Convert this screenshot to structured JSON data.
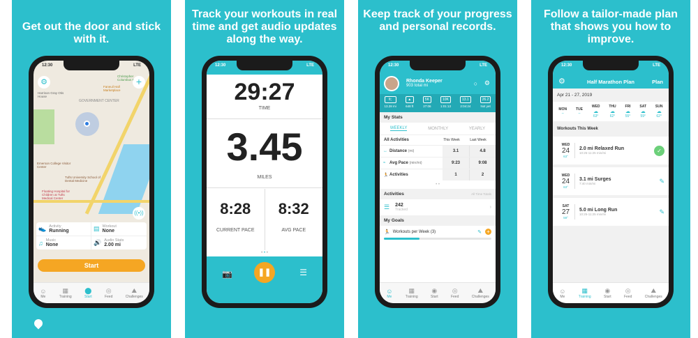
{
  "panels": [
    {
      "caption": "Get out the door and stick with it."
    },
    {
      "caption": "Track your workouts in real time and get audio updates along the way."
    },
    {
      "caption": "Keep track of your progress and personal records."
    },
    {
      "caption": "Follow a tailor-made plan that shows you how to improve."
    }
  ],
  "status": {
    "time": "12:30",
    "network": "LTE"
  },
  "tabs": [
    "Me",
    "Training",
    "Start",
    "Feed",
    "Challenges"
  ],
  "map": {
    "labels": [
      "GOVERNMENT CENTER",
      "Faneuil Hall Marketplace",
      "Christopher Columbus Park",
      "Emerson College Visitor Center",
      "Tufts University School of Dental Medicine",
      "Floating Hospital for Children at Tufts Medical Center",
      "Harrison Gray Otis House"
    ],
    "settings": [
      {
        "label": "Activity",
        "value": "Running"
      },
      {
        "label": "Workout",
        "value": "None"
      },
      {
        "label": "Music",
        "value": "None"
      },
      {
        "label": "Audio Stats",
        "value": "2.00 mi"
      }
    ],
    "start": "Start"
  },
  "tracker": {
    "time": "29:27",
    "time_label": "TIME",
    "distance": "3.45",
    "distance_label": "MILES",
    "current_pace": "8:28",
    "current_pace_label": "CURRENT PACE",
    "avg_pace": "8:32",
    "avg_pace_label": "AVG PACE"
  },
  "profile": {
    "name": "Rhonda Keeper",
    "total": "903 total mi",
    "records": [
      "13.28 mi",
      "648 ft",
      "27:06",
      "1:01:13",
      "2:04:24",
      "Not yet"
    ],
    "badges": [
      "lt;",
      "▲",
      "5K",
      "10K",
      "13.1",
      "26.2"
    ],
    "my_stats": "My Stats",
    "periods": [
      "WEEKLY",
      "MONTHLY",
      "YEARLY"
    ],
    "filter": "All Activities",
    "cols": [
      "This Week",
      "Last Week"
    ],
    "rows": [
      {
        "label": "Distance",
        "unit": "(mi)",
        "this": "3.1",
        "last": "4.8"
      },
      {
        "label": "Avg Pace",
        "unit": "(min/mi)",
        "this": "9:23",
        "last": "9:08"
      },
      {
        "label": "Activities",
        "unit": "",
        "this": "1",
        "last": "2"
      }
    ],
    "activities_title": "Activities",
    "all_time": "All Time Totals",
    "count": "242",
    "tracked": "Tracked",
    "goals_title": "My Goals",
    "goal": "Workouts per Week (3)",
    "goal_progress": 0.33
  },
  "plan": {
    "title": "Half Marathon Plan",
    "plan_btn": "Plan",
    "range": "Apr 21 - 27, 2019",
    "days": [
      {
        "d": "MON",
        "t": "–"
      },
      {
        "d": "TUE",
        "t": "–"
      },
      {
        "d": "WED",
        "t": "63°"
      },
      {
        "d": "THU",
        "t": "62°"
      },
      {
        "d": "FRI",
        "t": "55°"
      },
      {
        "d": "SAT",
        "t": "59°"
      },
      {
        "d": "SUN",
        "t": "62°"
      }
    ],
    "workouts_title": "Workouts This Week",
    "workouts": [
      {
        "dow": "WED",
        "day": "24",
        "temp": "63°",
        "title": "2.0 mi Relaxed Run",
        "pace": "10:25-11:25 min/mi",
        "done": true
      },
      {
        "dow": "WED",
        "day": "24",
        "temp": "63°",
        "title": "3.1 mi Surges",
        "pace": "7:40 min/mi",
        "done": false
      },
      {
        "dow": "SAT",
        "day": "27",
        "temp": "59°",
        "title": "5.0 mi Long Run",
        "pace": "10:25-11:25 min/mi",
        "done": false
      }
    ]
  },
  "colors": {
    "brand": "#2cbfcc",
    "accent": "#f5a623",
    "done": "#6cd07a"
  }
}
